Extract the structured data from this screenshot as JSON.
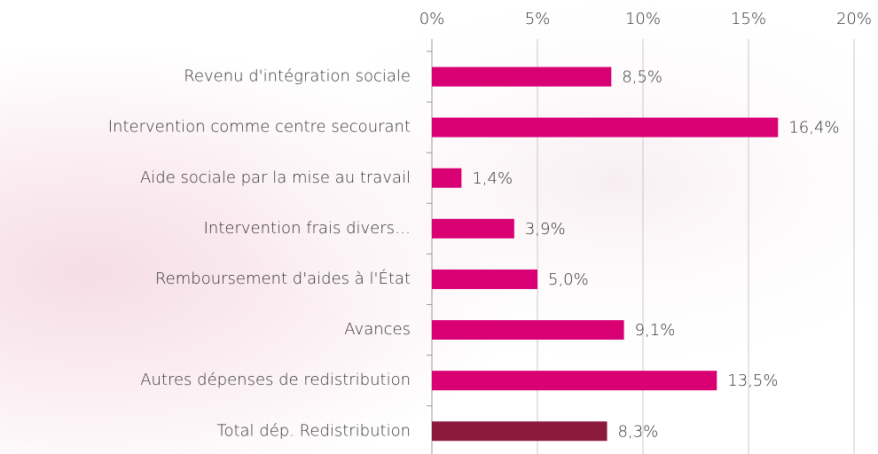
{
  "chart_data": {
    "type": "barh",
    "categories": [
      "Revenu d'intégration sociale",
      "Intervention comme centre secourant",
      "Aide sociale par la mise au travail",
      "Intervention frais divers…",
      "Remboursement d'aides à l'État",
      "Avances",
      "Autres dépenses de redistribution",
      "Total dép. Redistribution"
    ],
    "values": [
      8.5,
      16.4,
      1.4,
      3.9,
      5.0,
      9.1,
      13.5,
      8.3
    ],
    "value_labels": [
      "8,5%",
      "16,4%",
      "1,4%",
      "3,9%",
      "5,0%",
      "9,1%",
      "13,5%",
      "8,3%"
    ],
    "colors": [
      "#d80073",
      "#d80073",
      "#d80073",
      "#d80073",
      "#d80073",
      "#d80073",
      "#d80073",
      "#8c1a3c"
    ],
    "xlim": [
      0,
      20
    ],
    "xticks": [
      {
        "value": 0,
        "label": "0%"
      },
      {
        "value": 5,
        "label": "5%"
      },
      {
        "value": 10,
        "label": "10%"
      },
      {
        "value": 15,
        "label": "15%"
      },
      {
        "value": 20,
        "label": "20%"
      }
    ],
    "grid": true
  }
}
